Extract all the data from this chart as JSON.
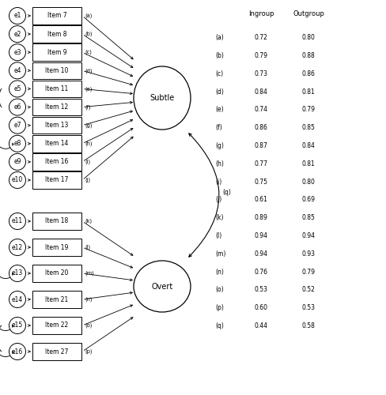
{
  "subtle_items": [
    "Item 7",
    "Item 8",
    "Item 9",
    "Item 10",
    "Item 11",
    "Item 12",
    "Item 13",
    "Item 14",
    "Item 16",
    "Item 17"
  ],
  "subtle_errors": [
    "e1",
    "e2",
    "e3",
    "e4",
    "e5",
    "e6",
    "e7",
    "e8",
    "e9",
    "e10"
  ],
  "subtle_path_labels": [
    "(a)",
    "(b)",
    "(c)",
    "(d)",
    "(e)",
    "(f)",
    "(g)",
    "(h)",
    "(i)",
    "(j)"
  ],
  "overt_items": [
    "Item 18",
    "Item 19",
    "Item 20",
    "Item 21",
    "Item 22",
    "Item 27"
  ],
  "overt_errors": [
    "e11",
    "e12",
    "e13",
    "e14",
    "e15",
    "e16"
  ],
  "overt_path_labels": [
    "(k)",
    "(l)",
    "(m)",
    "(n)",
    "(o)",
    "(p)"
  ],
  "table_labels": [
    "(a)",
    "(b)",
    "(c)",
    "(d)",
    "(e)",
    "(f)",
    "(g)",
    "(h)",
    "(i)",
    "(j)",
    "(k)",
    "(l)",
    "(m)",
    "(n)",
    "(o)",
    "(p)",
    "(q)"
  ],
  "ingroup_values": [
    0.72,
    0.79,
    0.73,
    0.84,
    0.74,
    0.86,
    0.87,
    0.77,
    0.75,
    0.61,
    0.89,
    0.94,
    0.94,
    0.76,
    0.53,
    0.6,
    0.44
  ],
  "outgroup_values": [
    0.8,
    0.88,
    0.86,
    0.81,
    0.79,
    0.85,
    0.84,
    0.81,
    0.8,
    0.69,
    0.85,
    0.94,
    0.93,
    0.79,
    0.52,
    0.53,
    0.58
  ],
  "correlated_subtle_pairs": [
    [
      4,
      5
    ]
  ],
  "correlated_subtle_single": [
    7
  ],
  "correlated_overt_pairs": [
    [
      4,
      5
    ]
  ],
  "correlated_overt_single": [
    2
  ],
  "bg_color": "#ffffff",
  "box_color": "#ffffff",
  "box_edge": "#000000",
  "ellipse_color": "#ffffff",
  "ellipse_edge": "#000000",
  "circle_color": "#ffffff",
  "circle_edge": "#000000",
  "text_color": "#000000",
  "line_color": "#000000"
}
